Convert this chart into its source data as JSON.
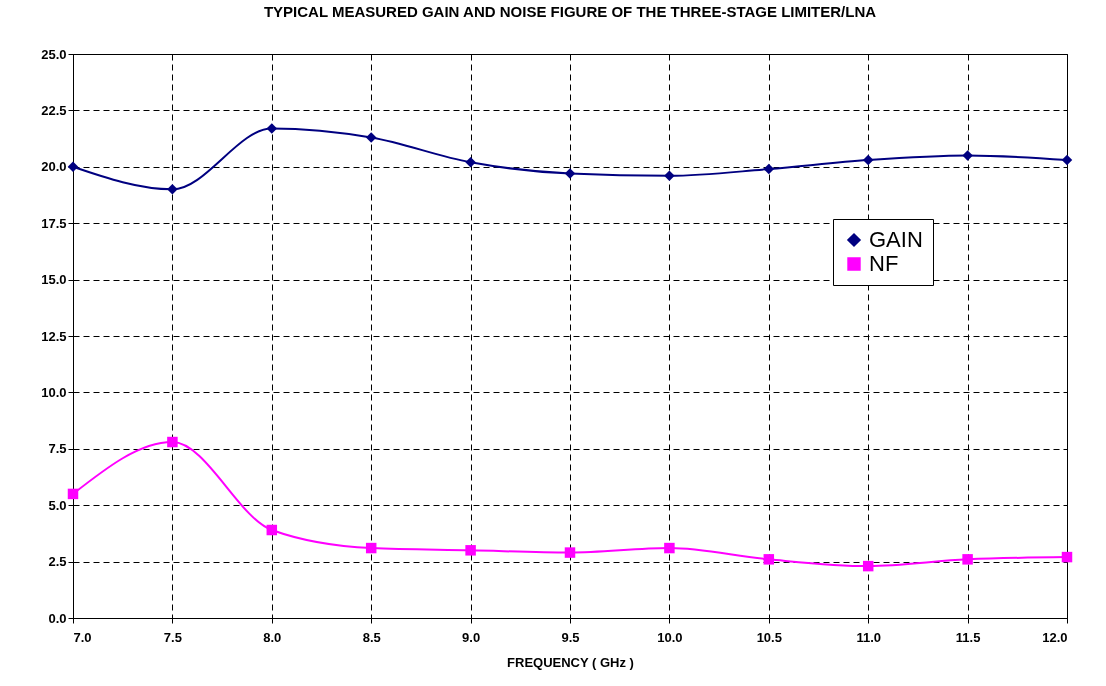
{
  "chart_data": {
    "type": "line",
    "title": "TYPICAL MEASURED GAIN AND NOISE FIGURE OF THE THREE-STAGE LIMITER/LNA",
    "xlabel": "FREQUENCY ( GHz )",
    "x": [
      7.0,
      7.5,
      8.0,
      8.5,
      9.0,
      9.5,
      10.0,
      10.5,
      11.0,
      11.5,
      12.0
    ],
    "series": [
      {
        "name": "GAIN",
        "color": "#000080",
        "marker": "diamond",
        "values": [
          20.0,
          19.0,
          21.7,
          21.3,
          20.2,
          19.7,
          19.6,
          19.9,
          20.3,
          20.5,
          20.3
        ]
      },
      {
        "name": "NF",
        "color": "#ff00ff",
        "marker": "square",
        "values": [
          5.5,
          7.8,
          3.9,
          3.1,
          3.0,
          2.9,
          3.1,
          2.6,
          2.3,
          2.6,
          2.7
        ]
      }
    ],
    "xlim": [
      7.0,
      12.0
    ],
    "ylim": [
      0,
      25
    ],
    "xticks": [
      {
        "value": 7,
        "label": "7.0"
      },
      {
        "value": 7.5,
        "label": "7.5"
      },
      {
        "value": 8,
        "label": "8.0"
      },
      {
        "value": 8.5,
        "label": "8.5"
      },
      {
        "value": 9,
        "label": "9.0"
      },
      {
        "value": 9.5,
        "label": "9.5"
      },
      {
        "value": 10,
        "label": "10.0"
      },
      {
        "value": 10.5,
        "label": "10.5"
      },
      {
        "value": 11,
        "label": "11.0"
      },
      {
        "value": 11.5,
        "label": "11.5"
      },
      {
        "value": 12,
        "label": "12.0"
      }
    ],
    "yticks": [
      {
        "value": 0,
        "label": "0.0"
      },
      {
        "value": 2.5,
        "label": "2.5"
      },
      {
        "value": 5,
        "label": "5.0"
      },
      {
        "value": 7.5,
        "label": "7.5"
      },
      {
        "value": 10,
        "label": "10.0"
      },
      {
        "value": 12.5,
        "label": "12.5"
      },
      {
        "value": 15,
        "label": "15.0"
      },
      {
        "value": 17.5,
        "label": "17.5"
      },
      {
        "value": 20,
        "label": "20.0"
      },
      {
        "value": 22.5,
        "label": "22.5"
      },
      {
        "value": 25,
        "label": "25.0"
      }
    ],
    "grid": true,
    "legend": "right",
    "line_style": "solid"
  }
}
